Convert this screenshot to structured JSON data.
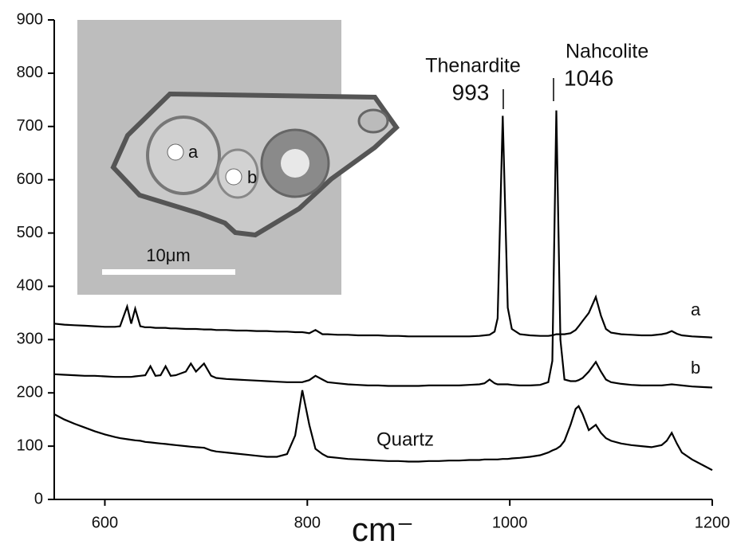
{
  "chart_data": {
    "type": "line",
    "x_label": "cm⁻",
    "xlim": [
      550,
      1200
    ],
    "xticks": [
      600,
      800,
      1000,
      1200
    ],
    "ylim": [
      0,
      900
    ],
    "yticks": [
      0,
      100,
      200,
      300,
      400,
      500,
      600,
      700,
      800,
      900
    ],
    "x": [
      550,
      560,
      570,
      580,
      590,
      600,
      610,
      615,
      622,
      626,
      630,
      635,
      640,
      645,
      650,
      655,
      660,
      665,
      670,
      680,
      685,
      690,
      698,
      705,
      710,
      720,
      730,
      740,
      750,
      760,
      770,
      780,
      788,
      795,
      802,
      808,
      815,
      820,
      830,
      840,
      850,
      860,
      870,
      880,
      890,
      900,
      910,
      920,
      930,
      940,
      950,
      960,
      970,
      975,
      980,
      985,
      988,
      993,
      998,
      1002,
      1010,
      1020,
      1030,
      1038,
      1042,
      1046,
      1050,
      1054,
      1060,
      1065,
      1068,
      1072,
      1078,
      1085,
      1090,
      1095,
      1100,
      1110,
      1120,
      1130,
      1140,
      1150,
      1155,
      1160,
      1165,
      1170,
      1180,
      1190,
      1200
    ],
    "series": [
      {
        "name": "a",
        "color": "#000000",
        "values": [
          330,
          328,
          327,
          326,
          325,
          324,
          324,
          325,
          362,
          330,
          358,
          325,
          323,
          323,
          322,
          322,
          322,
          321,
          321,
          320,
          320,
          320,
          319,
          319,
          318,
          318,
          317,
          317,
          316,
          316,
          315,
          315,
          314,
          314,
          312,
          318,
          310,
          310,
          309,
          309,
          308,
          308,
          308,
          307,
          307,
          306,
          306,
          306,
          306,
          306,
          306,
          306,
          307,
          308,
          309,
          315,
          340,
          720,
          360,
          320,
          310,
          308,
          307,
          307,
          308,
          310,
          310,
          310,
          312,
          318,
          325,
          335,
          350,
          380,
          345,
          320,
          313,
          310,
          309,
          308,
          308,
          310,
          312,
          316,
          311,
          308,
          306,
          305,
          304
        ]
      },
      {
        "name": "b",
        "color": "#000000",
        "values": [
          235,
          234,
          233,
          232,
          232,
          231,
          230,
          230,
          230,
          230,
          231,
          232,
          233,
          250,
          232,
          233,
          250,
          232,
          233,
          240,
          255,
          240,
          255,
          232,
          228,
          226,
          225,
          224,
          223,
          222,
          221,
          220,
          220,
          220,
          224,
          232,
          225,
          220,
          218,
          216,
          215,
          214,
          214,
          213,
          213,
          213,
          213,
          214,
          214,
          214,
          214,
          215,
          216,
          218,
          225,
          218,
          216,
          216,
          216,
          215,
          214,
          214,
          215,
          220,
          260,
          730,
          300,
          225,
          222,
          222,
          224,
          228,
          240,
          258,
          240,
          225,
          220,
          217,
          215,
          214,
          214,
          214,
          215,
          216,
          215,
          214,
          212,
          211,
          210
        ]
      },
      {
        "name": "Quartz",
        "color": "#000000",
        "values": [
          160,
          150,
          142,
          135,
          128,
          122,
          117,
          115,
          113,
          112,
          111,
          110,
          108,
          107,
          106,
          105,
          104,
          103,
          102,
          100,
          99,
          98,
          97,
          92,
          90,
          88,
          86,
          84,
          82,
          80,
          80,
          85,
          120,
          205,
          140,
          95,
          85,
          80,
          78,
          76,
          75,
          74,
          73,
          72,
          72,
          71,
          71,
          72,
          72,
          73,
          73,
          74,
          74,
          75,
          75,
          75,
          75,
          76,
          76,
          77,
          78,
          80,
          83,
          88,
          92,
          95,
          100,
          110,
          140,
          170,
          175,
          160,
          130,
          140,
          125,
          115,
          110,
          105,
          102,
          100,
          98,
          102,
          110,
          125,
          105,
          88,
          75,
          65,
          55
        ]
      }
    ],
    "annotations": [
      "Thenardite",
      "993",
      "Nahcolite",
      "1046"
    ]
  },
  "inset": {
    "labels": [
      "a",
      "b"
    ],
    "scale_bar": "10μm"
  }
}
